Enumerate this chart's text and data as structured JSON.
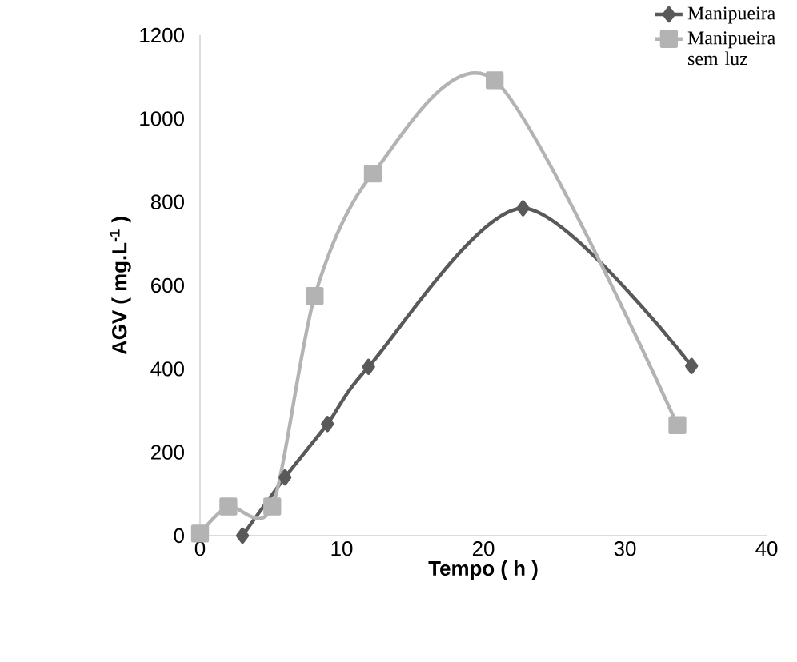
{
  "chart_data": {
    "type": "line",
    "xlabel": "Tempo ( h )",
    "ylabel": "AGV ( mg.L$^{-1}$ )",
    "xlim": [
      0,
      40
    ],
    "ylim": [
      0,
      1200
    ],
    "xticks": [
      0,
      10,
      20,
      30,
      40
    ],
    "yticks": [
      0,
      200,
      400,
      600,
      800,
      1000,
      1200
    ],
    "legend": "top right",
    "series": [
      {
        "name": "Manipueira",
        "color": "#595959",
        "marker": "diamond",
        "x": [
          3,
          6,
          9,
          11.9,
          22.8,
          34.7
        ],
        "values": [
          0,
          140,
          268,
          405,
          785,
          407
        ]
      },
      {
        "name": "Manipueira sem luz",
        "color": "#b3b3b3",
        "marker": "square",
        "x": [
          0,
          2,
          5.1,
          8.1,
          12.2,
          20.8,
          33.7
        ],
        "values": [
          5,
          70,
          70,
          575,
          868,
          1092,
          265
        ]
      }
    ]
  }
}
